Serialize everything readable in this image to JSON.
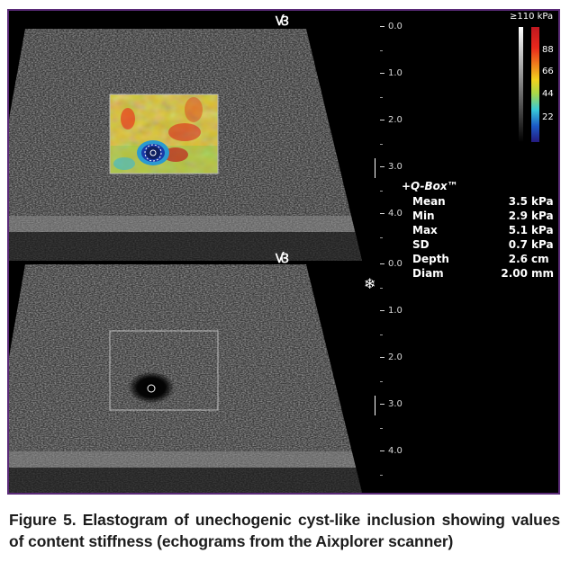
{
  "top_panel": {
    "depth_ticks": [
      "0.0",
      "1.0",
      "2.0",
      "3.0",
      "4.0"
    ]
  },
  "bottom_panel": {
    "depth_ticks": [
      "0.0",
      "1.0",
      "2.0",
      "3.0",
      "4.0"
    ]
  },
  "color_scale": {
    "max_label": "≥110 kPa",
    "labels": [
      "88",
      "66",
      "44",
      "22"
    ]
  },
  "qbox": {
    "title": "+Q-Box™",
    "rows": [
      {
        "label": "Mean",
        "value": "3.5",
        "unit": "kPa"
      },
      {
        "label": "Min",
        "value": "2.9",
        "unit": "kPa"
      },
      {
        "label": "Max",
        "value": "5.1",
        "unit": "kPa"
      },
      {
        "label": "SD",
        "value": "0.7",
        "unit": "kPa"
      },
      {
        "label": "Depth",
        "value": "2.6",
        "unit": "cm"
      },
      {
        "label": "Diam",
        "value": "2.00",
        "unit": "mm"
      }
    ]
  },
  "icons": {
    "probe_marker": "probe-orientation-icon",
    "freeze": "snowflake-icon"
  },
  "caption": "Figure 5. Elastogram of unechogenic cyst-like inclusion showing values of content stiffness (echograms from the Aixplorer scanner)"
}
